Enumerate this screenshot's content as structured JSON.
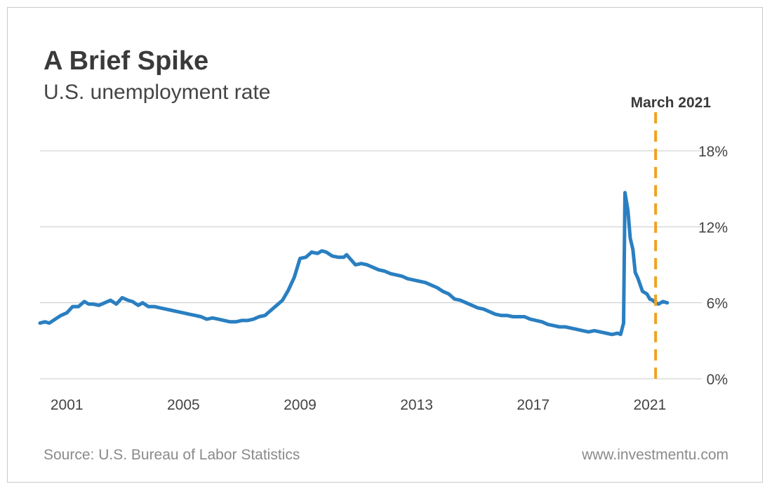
{
  "header": {
    "title": "A Brief Spike",
    "subtitle": "U.S. unemployment rate"
  },
  "footer": {
    "source": "Source: U.S. Bureau of Labor Statistics",
    "website": "www.investmentu.com"
  },
  "colors": {
    "line": "#2a7fc1",
    "marker": "#f0a21f",
    "grid": "#c8c8c8",
    "text": "#3a3a3a"
  },
  "chart_data": {
    "type": "line",
    "title": "A Brief Spike",
    "subtitle": "U.S. unemployment rate",
    "xlabel": "",
    "ylabel": "",
    "x_ticks": [
      "2001",
      "2005",
      "2009",
      "2013",
      "2017",
      "2021"
    ],
    "x_tick_values": [
      2001,
      2005,
      2009,
      2013,
      2017,
      2021
    ],
    "y_ticks": [
      "0%",
      "6%",
      "12%",
      "18%"
    ],
    "y_tick_values": [
      0,
      6,
      12,
      18
    ],
    "xlim": [
      2000.08,
      2021.75
    ],
    "ylim": [
      0,
      18
    ],
    "grid": "horizontal",
    "annotation": {
      "label": "March 2021",
      "x": 2021.2,
      "style": "dashed vertical line"
    },
    "series": [
      {
        "x": [
          2000.08,
          2000.25,
          2000.4,
          2000.6,
          2000.8,
          2001.0,
          2001.2,
          2001.4,
          2001.6,
          2001.75,
          2001.9,
          2002.1,
          2002.3,
          2002.5,
          2002.7,
          2002.9,
          2003.1,
          2003.25,
          2003.45,
          2003.6,
          2003.8,
          2004.0,
          2004.2,
          2004.4,
          2004.6,
          2004.8,
          2005.0,
          2005.2,
          2005.4,
          2005.6,
          2005.8,
          2006.0,
          2006.2,
          2006.4,
          2006.6,
          2006.8,
          2007.0,
          2007.2,
          2007.4,
          2007.6,
          2007.8,
          2008.0,
          2008.2,
          2008.4,
          2008.6,
          2008.8,
          2009.0,
          2009.2,
          2009.4,
          2009.6,
          2009.75,
          2009.9,
          2010.1,
          2010.3,
          2010.5,
          2010.6,
          2010.75,
          2010.9,
          2011.1,
          2011.3,
          2011.5,
          2011.7,
          2011.9,
          2012.1,
          2012.3,
          2012.5,
          2012.7,
          2012.9,
          2013.1,
          2013.3,
          2013.5,
          2013.7,
          2013.9,
          2014.1,
          2014.3,
          2014.5,
          2014.7,
          2014.9,
          2015.1,
          2015.3,
          2015.5,
          2015.7,
          2015.9,
          2016.1,
          2016.3,
          2016.5,
          2016.7,
          2016.9,
          2017.1,
          2017.3,
          2017.5,
          2017.7,
          2017.9,
          2018.1,
          2018.3,
          2018.5,
          2018.7,
          2018.9,
          2019.1,
          2019.3,
          2019.5,
          2019.7,
          2019.9,
          2020.0,
          2020.1,
          2020.15,
          2020.25,
          2020.33,
          2020.42,
          2020.5,
          2020.6,
          2020.75,
          2020.9,
          2021.0,
          2021.1,
          2021.2,
          2021.3,
          2021.45,
          2021.6
        ],
        "values": [
          4.4,
          4.5,
          4.4,
          4.7,
          5.0,
          5.2,
          5.7,
          5.7,
          6.1,
          5.9,
          5.9,
          5.8,
          6.0,
          6.2,
          5.9,
          6.4,
          6.2,
          6.1,
          5.8,
          6.0,
          5.7,
          5.7,
          5.6,
          5.5,
          5.4,
          5.3,
          5.2,
          5.1,
          5.0,
          4.9,
          4.7,
          4.8,
          4.7,
          4.6,
          4.5,
          4.5,
          4.6,
          4.6,
          4.7,
          4.9,
          5.0,
          5.4,
          5.8,
          6.2,
          7.0,
          8.0,
          9.5,
          9.6,
          10.0,
          9.9,
          10.1,
          10.0,
          9.7,
          9.6,
          9.6,
          9.8,
          9.4,
          9.0,
          9.1,
          9.0,
          8.8,
          8.6,
          8.5,
          8.3,
          8.2,
          8.1,
          7.9,
          7.8,
          7.7,
          7.6,
          7.4,
          7.2,
          6.9,
          6.7,
          6.3,
          6.2,
          6.0,
          5.8,
          5.6,
          5.5,
          5.3,
          5.1,
          5.0,
          5.0,
          4.9,
          4.9,
          4.9,
          4.7,
          4.6,
          4.5,
          4.3,
          4.2,
          4.1,
          4.1,
          4.0,
          3.9,
          3.8,
          3.7,
          3.8,
          3.7,
          3.6,
          3.5,
          3.6,
          3.5,
          4.4,
          14.7,
          13.3,
          11.1,
          10.2,
          8.4,
          7.9,
          6.9,
          6.7,
          6.3,
          6.2,
          6.0,
          5.9,
          6.1,
          6.0
        ]
      }
    ]
  }
}
